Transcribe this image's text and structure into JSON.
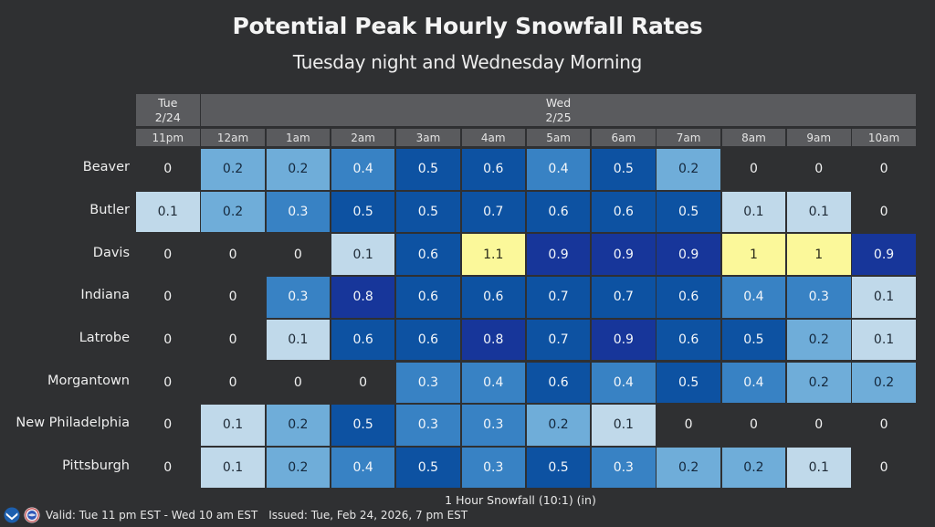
{
  "chart_data": {
    "type": "heatmap",
    "title": "Potential Peak Hourly Snowfall Rates",
    "subtitle": "Tuesday night and Wednesday Morning",
    "days": [
      {
        "label_line1": "Tue",
        "label_line2": "2/24",
        "span": 1
      },
      {
        "label_line1": "Wed",
        "label_line2": "2/25",
        "span": 11
      }
    ],
    "hours": [
      "11pm",
      "12am",
      "1am",
      "2am",
      "3am",
      "4am",
      "5am",
      "6am",
      "7am",
      "8am",
      "9am",
      "10am"
    ],
    "rows": [
      {
        "name": "Beaver",
        "values": [
          0,
          0.2,
          0.2,
          0.4,
          0.5,
          0.6,
          0.4,
          0.5,
          0.2,
          0,
          0,
          0
        ]
      },
      {
        "name": "Butler",
        "values": [
          0.1,
          0.2,
          0.3,
          0.5,
          0.5,
          0.7,
          0.6,
          0.6,
          0.5,
          0.1,
          0.1,
          0
        ]
      },
      {
        "name": "Davis",
        "values": [
          0,
          0,
          0,
          0.1,
          0.6,
          1.1,
          0.9,
          0.9,
          0.9,
          1,
          1,
          0.9
        ]
      },
      {
        "name": "Indiana",
        "values": [
          0,
          0,
          0.3,
          0.8,
          0.6,
          0.6,
          0.7,
          0.7,
          0.6,
          0.4,
          0.3,
          0.1
        ]
      },
      {
        "name": "Latrobe",
        "values": [
          0,
          0,
          0.1,
          0.6,
          0.6,
          0.8,
          0.7,
          0.9,
          0.6,
          0.5,
          0.2,
          0.1
        ]
      },
      {
        "name": "Morgantown",
        "values": [
          0,
          0,
          0,
          0,
          0.3,
          0.4,
          0.6,
          0.4,
          0.5,
          0.4,
          0.2,
          0.2
        ]
      },
      {
        "name": "New Philadelphia",
        "values": [
          0,
          0.1,
          0.2,
          0.5,
          0.3,
          0.3,
          0.2,
          0.1,
          0,
          0,
          0,
          0
        ]
      },
      {
        "name": "Pittsburgh",
        "values": [
          0,
          0.1,
          0.2,
          0.4,
          0.5,
          0.3,
          0.5,
          0.3,
          0.2,
          0.2,
          0.1,
          0
        ]
      }
    ],
    "color_scale": [
      {
        "min": 0,
        "max": 0.05,
        "color": "#2f3032",
        "text": "#f2f2f2"
      },
      {
        "min": 0.05,
        "max": 0.15,
        "color": "#c0d9ea",
        "text": "#1e2a36"
      },
      {
        "min": 0.15,
        "max": 0.25,
        "color": "#6fadd9",
        "text": "#15283c"
      },
      {
        "min": 0.25,
        "max": 0.45,
        "color": "#3882c4",
        "text": "#f2f6fa"
      },
      {
        "min": 0.45,
        "max": 0.75,
        "color": "#0d52a2",
        "text": "#f2f6fa"
      },
      {
        "min": 0.75,
        "max": 0.95,
        "color": "#17369a",
        "text": "#f2f6fa"
      },
      {
        "min": 0.95,
        "max": 99,
        "color": "#fbf89a",
        "text": "#2a2a1a"
      }
    ],
    "legend_title": "1 Hour Snowfall (10:1) (in)",
    "units": "in"
  },
  "footer": {
    "valid": "Valid: Tue 11 pm EST - Wed 10 am EST",
    "issued": "Issued: Tue, Feb 24, 2026, 7 pm EST",
    "logos": [
      "noaa-logo",
      "nws-logo"
    ]
  }
}
